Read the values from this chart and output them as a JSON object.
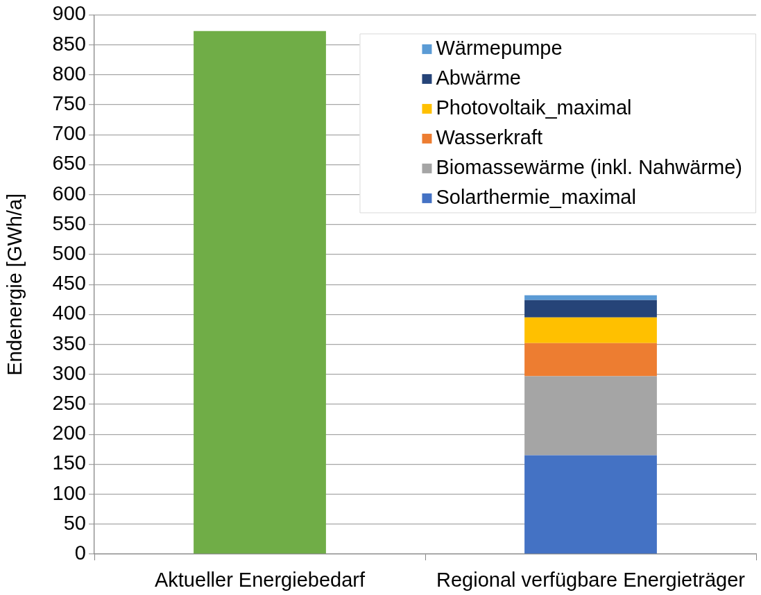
{
  "chart_data": {
    "type": "bar",
    "stacked": true,
    "ylabel": "Endenergie [GWh/a]",
    "categories": [
      "Aktueller Energiebedarf",
      "Regional verfügbare Energieträger"
    ],
    "series": [
      {
        "color": "#70ad47",
        "values": [
          873,
          null
        ]
      },
      {
        "name": "Solarthermie_maximal",
        "color": "#4472c4",
        "values": [
          null,
          165
        ]
      },
      {
        "name": "Biomassewärme (inkl. Nahwärme)",
        "color": "#a5a5a5",
        "values": [
          null,
          132
        ]
      },
      {
        "name": "Wasserkraft",
        "color": "#ed7d31",
        "values": [
          null,
          55
        ]
      },
      {
        "name": "Photovoltaik_maximal",
        "color": "#ffc000",
        "values": [
          null,
          43
        ]
      },
      {
        "name": "Abwärme",
        "color": "#264478",
        "values": [
          null,
          29
        ]
      },
      {
        "name": "Wärmepumpe",
        "color": "#5b9bd5",
        "values": [
          null,
          8
        ]
      }
    ],
    "ylim": [
      0,
      900
    ],
    "yticks": [
      0,
      50,
      100,
      150,
      200,
      250,
      300,
      350,
      400,
      450,
      500,
      550,
      600,
      650,
      700,
      750,
      800,
      850,
      900
    ],
    "grid": "y",
    "legend": "top right"
  }
}
